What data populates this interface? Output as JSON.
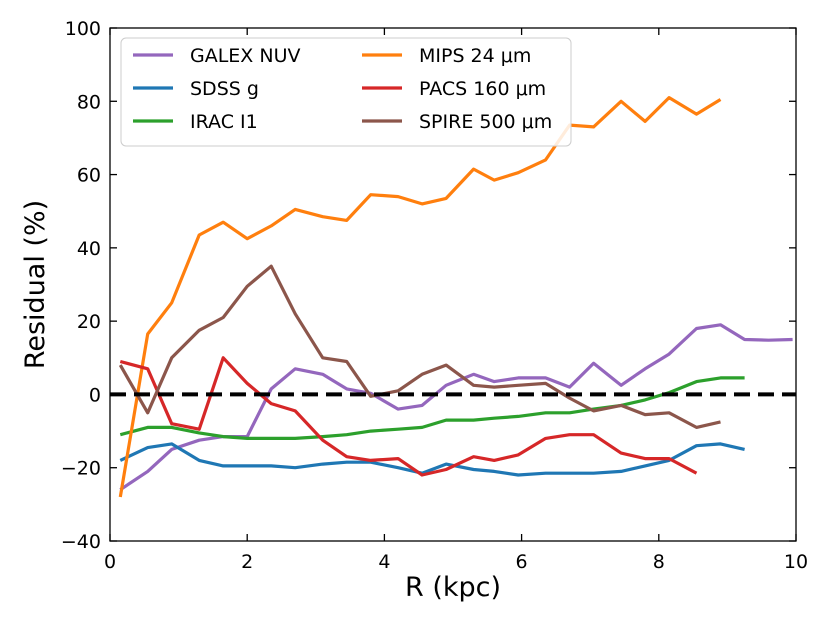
{
  "chart_data": {
    "type": "line",
    "title": "",
    "xlabel": "R (kpc)",
    "ylabel": "Residual (%)",
    "xlim": [
      0,
      10
    ],
    "ylim": [
      -40,
      100
    ],
    "xticks": [
      0,
      2,
      4,
      6,
      8,
      10
    ],
    "yticks": [
      -40,
      -20,
      0,
      20,
      40,
      60,
      80,
      100
    ],
    "xtick_labels": [
      "0",
      "2",
      "4",
      "6",
      "8",
      "10"
    ],
    "ytick_labels": [
      "−40",
      "−20",
      "0",
      "20",
      "40",
      "60",
      "80",
      "100"
    ],
    "reference_line": {
      "y": 0,
      "style": "dashed",
      "color": "#000000"
    },
    "legend_position": "top-left",
    "series": [
      {
        "name": "GALEX NUV",
        "color": "#9467bd",
        "x": [
          0.15,
          0.55,
          0.9,
          1.3,
          1.65,
          2.0,
          2.35,
          2.7,
          3.1,
          3.45,
          3.8,
          4.2,
          4.55,
          4.9,
          5.3,
          5.6,
          5.95,
          6.35,
          6.7,
          7.05,
          7.45,
          7.8,
          8.15,
          8.55,
          8.9,
          9.25,
          9.6,
          9.95
        ],
        "y": [
          -26,
          -21,
          -15,
          -12.5,
          -11.5,
          -11.5,
          1.5,
          7,
          5.5,
          1.5,
          0.3,
          -4,
          -3,
          2.5,
          5.5,
          3.5,
          4.5,
          4.5,
          2,
          8.5,
          2.5,
          7,
          11,
          18,
          19,
          15,
          14.8,
          15
        ]
      },
      {
        "name": "SDSS g",
        "color": "#1f77b4",
        "x": [
          0.15,
          0.55,
          0.9,
          1.3,
          1.65,
          2.0,
          2.35,
          2.7,
          3.1,
          3.45,
          3.8,
          4.2,
          4.55,
          4.9,
          5.3,
          5.6,
          5.95,
          6.35,
          6.7,
          7.05,
          7.45,
          7.8,
          8.15,
          8.55,
          8.9,
          9.25
        ],
        "y": [
          -18,
          -14.5,
          -13.5,
          -18,
          -19.5,
          -19.5,
          -19.5,
          -20,
          -19,
          -18.5,
          -18.5,
          -20,
          -21.5,
          -19,
          -20.5,
          -21,
          -22,
          -21.5,
          -21.5,
          -21.5,
          -21,
          -19.5,
          -18,
          -14,
          -13.5,
          -15
        ]
      },
      {
        "name": "IRAC I1",
        "color": "#2ca02c",
        "x": [
          0.15,
          0.55,
          0.9,
          1.3,
          1.65,
          2.0,
          2.35,
          2.7,
          3.1,
          3.45,
          3.8,
          4.2,
          4.55,
          4.9,
          5.3,
          5.6,
          5.95,
          6.35,
          6.7,
          7.05,
          7.45,
          7.8,
          8.15,
          8.55,
          8.9,
          9.25
        ],
        "y": [
          -11,
          -9,
          -9,
          -10.5,
          -11.5,
          -12,
          -12,
          -12,
          -11.5,
          -11,
          -10,
          -9.5,
          -9,
          -7,
          -7,
          -6.5,
          -6,
          -5,
          -5,
          -4,
          -3,
          -1.5,
          0.5,
          3.5,
          4.5,
          4.5
        ]
      },
      {
        "name": "MIPS 24 μm",
        "color": "#ff7f0e",
        "x": [
          0.15,
          0.55,
          0.9,
          1.3,
          1.65,
          2.0,
          2.35,
          2.7,
          3.1,
          3.45,
          3.8,
          4.2,
          4.55,
          4.9,
          5.3,
          5.6,
          5.95,
          6.35,
          6.7,
          7.05,
          7.45,
          7.8,
          8.15,
          8.55,
          8.9
        ],
        "y": [
          -28,
          16.5,
          25,
          43.5,
          47,
          42.5,
          46,
          50.5,
          48.5,
          47.5,
          54.5,
          54,
          52,
          53.5,
          61.5,
          58.5,
          60.5,
          64,
          73.5,
          73,
          80,
          74.5,
          81,
          76.5,
          80.5
        ]
      },
      {
        "name": "PACS 160 μm",
        "color": "#d62728",
        "x": [
          0.15,
          0.55,
          0.9,
          1.3,
          1.65,
          2.0,
          2.35,
          2.7,
          3.1,
          3.45,
          3.8,
          4.2,
          4.55,
          4.9,
          5.3,
          5.6,
          5.95,
          6.35,
          6.7,
          7.05,
          7.45,
          7.8,
          8.15,
          8.55
        ],
        "y": [
          9,
          7,
          -8,
          -9.5,
          10,
          3,
          -2.5,
          -4.5,
          -12.5,
          -17,
          -18,
          -17.5,
          -22,
          -20.5,
          -17,
          -18,
          -16.5,
          -12,
          -11,
          -11,
          -16,
          -17.5,
          -17.5,
          -21.5
        ]
      },
      {
        "name": "SPIRE 500 μm",
        "color": "#8c564b",
        "x": [
          0.15,
          0.55,
          0.9,
          1.3,
          1.65,
          2.0,
          2.35,
          2.7,
          3.1,
          3.45,
          3.8,
          4.2,
          4.55,
          4.9,
          5.3,
          5.6,
          5.95,
          6.35,
          6.7,
          7.05,
          7.45,
          7.8,
          8.15,
          8.55,
          8.9
        ],
        "y": [
          8,
          -5,
          10,
          17.5,
          21,
          29.5,
          35,
          22,
          10,
          9,
          -0.5,
          1,
          5.5,
          8,
          2.5,
          2,
          2.5,
          3,
          -1,
          -4.5,
          -3,
          -5.5,
          -5,
          -9,
          -7.5
        ]
      }
    ]
  }
}
